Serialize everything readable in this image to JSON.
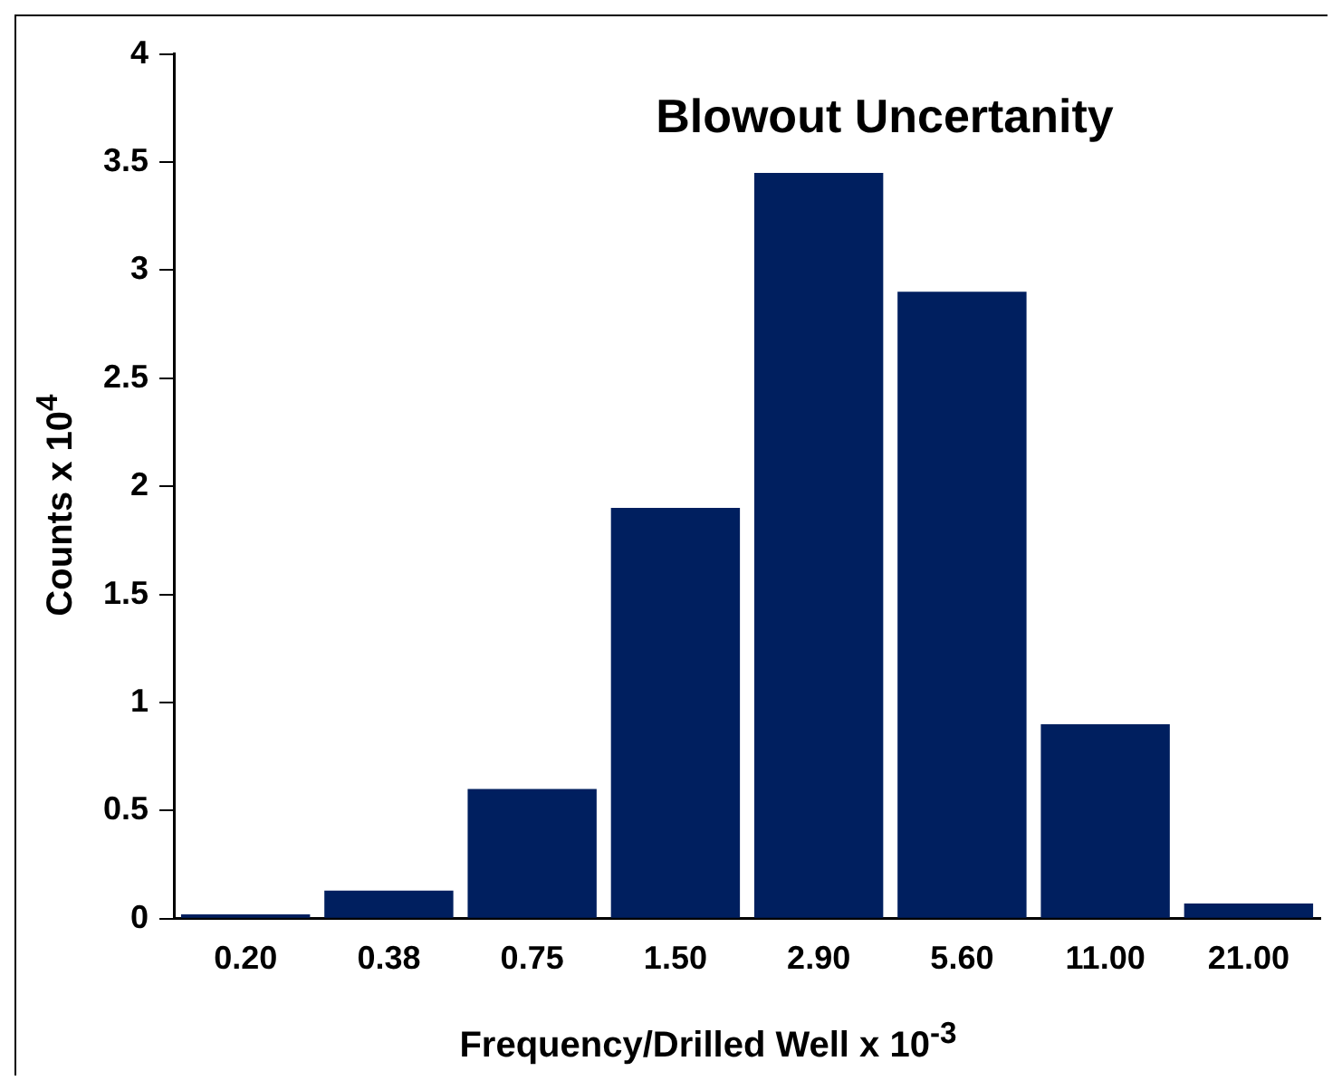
{
  "chart_data": {
    "type": "bar",
    "title": "Blowout Uncertanity",
    "xlabel": "Frequency/Drilled Well x 10$^{-3}$",
    "ylabel": "Counts  x  10$^{4}$",
    "categories": [
      "0.20",
      "0.38",
      "0.75",
      "1.50",
      "2.90",
      "5.60",
      "11.00",
      "21.00"
    ],
    "values": [
      0.02,
      0.13,
      0.6,
      1.9,
      3.45,
      2.9,
      0.9,
      0.07
    ],
    "color": "#001f5f",
    "ylim": [
      0,
      4
    ],
    "yticks": [
      0,
      0.5,
      1,
      1.5,
      2,
      2.5,
      3,
      3.5,
      4
    ],
    "grid": false,
    "legend": false
  }
}
